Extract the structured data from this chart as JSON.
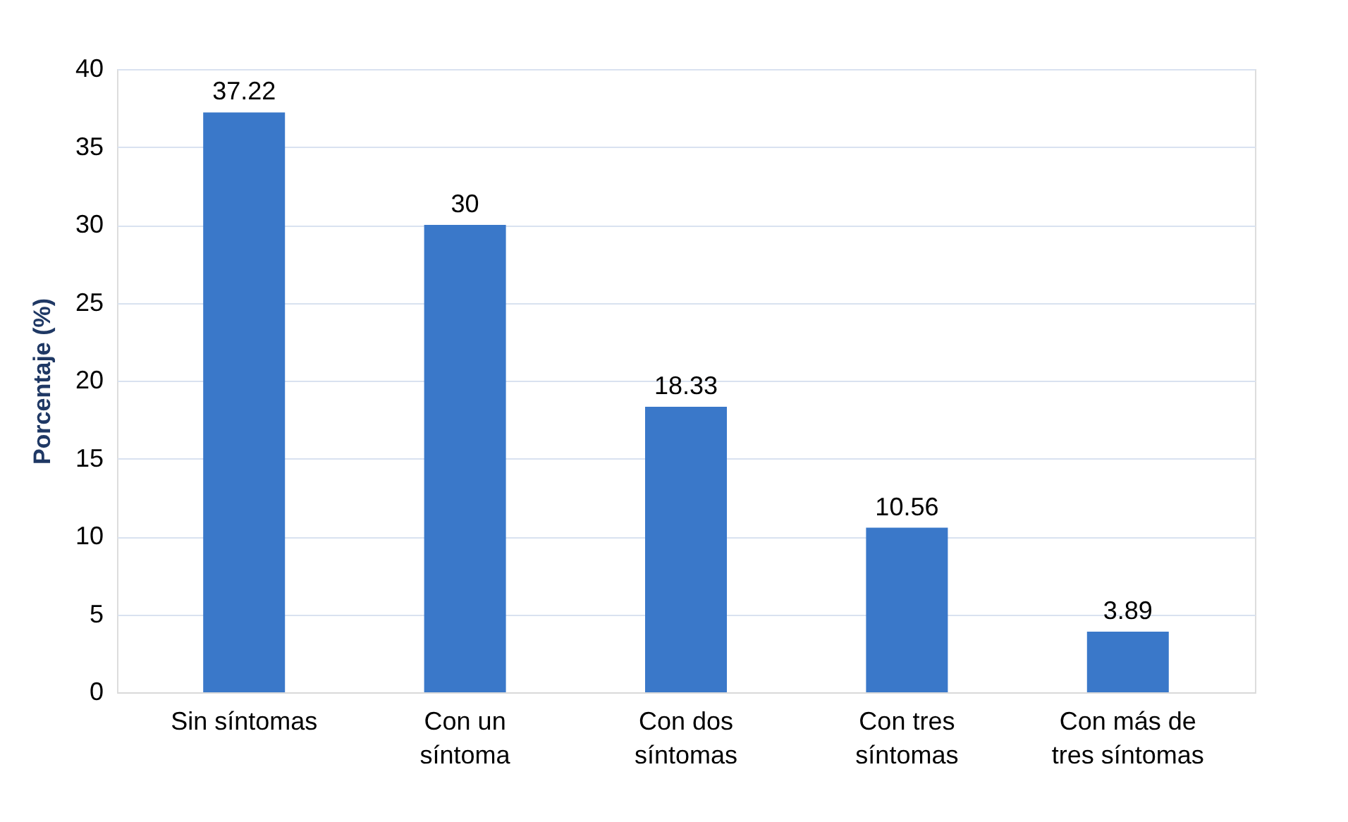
{
  "chart_data": {
    "type": "bar",
    "ylabel": "Porcentaje (%)",
    "categories": [
      "Sin síntomas",
      "Con un síntoma",
      "Con dos síntomas",
      "Con tres síntomas",
      "Con más de tres síntomas"
    ],
    "values": [
      37.22,
      30,
      18.33,
      10.56,
      3.89
    ],
    "color": "#3a78c9",
    "ylim": [
      0,
      40
    ],
    "yticks": [
      0,
      5,
      10,
      15,
      20,
      25,
      30,
      35,
      40
    ],
    "grid": "y",
    "data_labels": true
  }
}
